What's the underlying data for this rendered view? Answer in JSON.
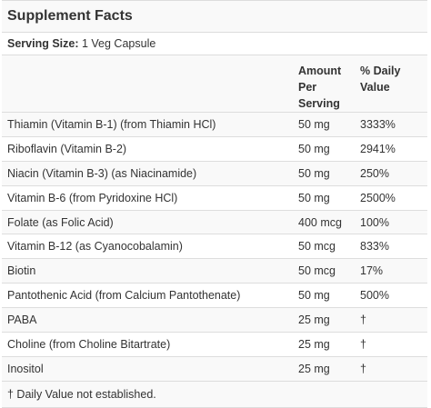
{
  "title": "Supplement Facts",
  "serving": {
    "label": "Serving Size:",
    "value": "1 Veg Capsule"
  },
  "columns": {
    "amount_line1": "Amount",
    "amount_line2": "Per",
    "amount_line3": "Serving",
    "dv_line1": "% Daily",
    "dv_line2": "Value"
  },
  "rows": [
    {
      "name": "Thiamin (Vitamin B-1) (from Thiamin HCl)",
      "amount": "50 mg",
      "dv": "3333%"
    },
    {
      "name": "Riboflavin (Vitamin B-2)",
      "amount": "50 mg",
      "dv": "2941%"
    },
    {
      "name": "Niacin (Vitamin B-3) (as Niacinamide)",
      "amount": "50 mg",
      "dv": "250%"
    },
    {
      "name": "Vitamin B-6 (from Pyridoxine HCl)",
      "amount": "50 mg",
      "dv": "2500%"
    },
    {
      "name": "Folate (as Folic Acid)",
      "amount": "400 mcg",
      "dv": "100%"
    },
    {
      "name": "Vitamin B-12 (as Cyanocobalamin)",
      "amount": "50 mcg",
      "dv": "833%"
    },
    {
      "name": "Biotin",
      "amount": "50 mcg",
      "dv": "17%"
    },
    {
      "name": "Pantothenic Acid (from Calcium Pantothenate)",
      "amount": "50 mg",
      "dv": "500%"
    },
    {
      "name": "PABA",
      "amount": "25 mg",
      "dv": "†"
    },
    {
      "name": "Choline (from Choline Bitartrate)",
      "amount": "25 mg",
      "dv": "†"
    },
    {
      "name": "Inositol",
      "amount": "25 mg",
      "dv": "†"
    }
  ],
  "footnote": "† Daily Value not established."
}
